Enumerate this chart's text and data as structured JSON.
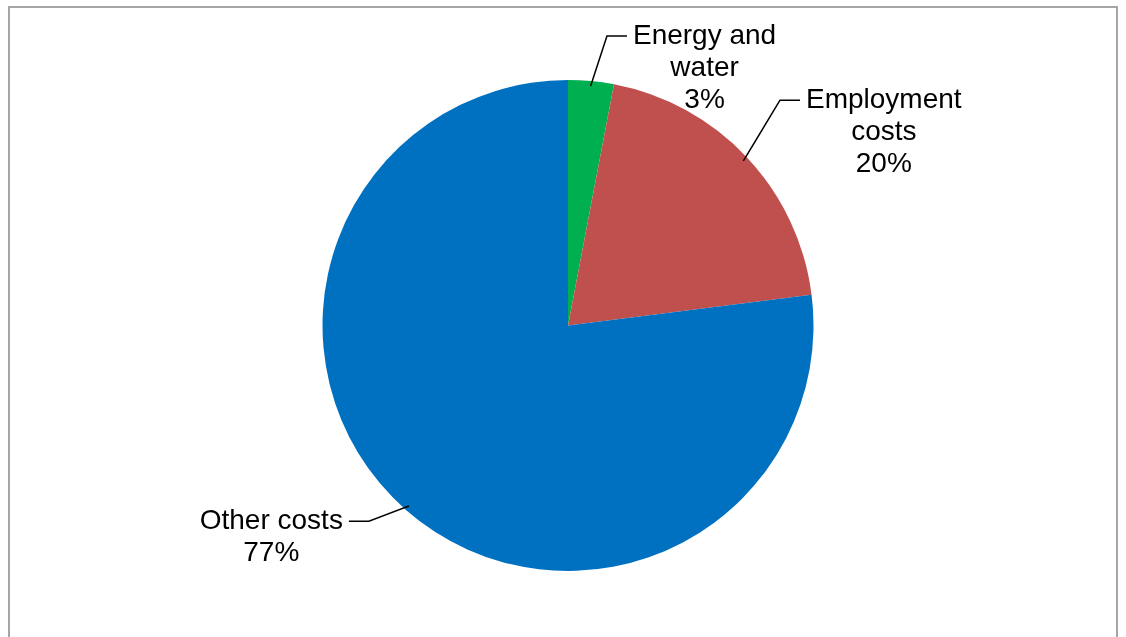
{
  "chart_data": {
    "type": "pie",
    "categories": [
      "Energy and water",
      "Employment costs",
      "Other costs"
    ],
    "values": [
      3,
      20,
      77
    ],
    "colors": [
      "#00b050",
      "#c0504d",
      "#0070c0"
    ],
    "value_labels": [
      "3%",
      "20%",
      "77%"
    ],
    "legend": false
  }
}
